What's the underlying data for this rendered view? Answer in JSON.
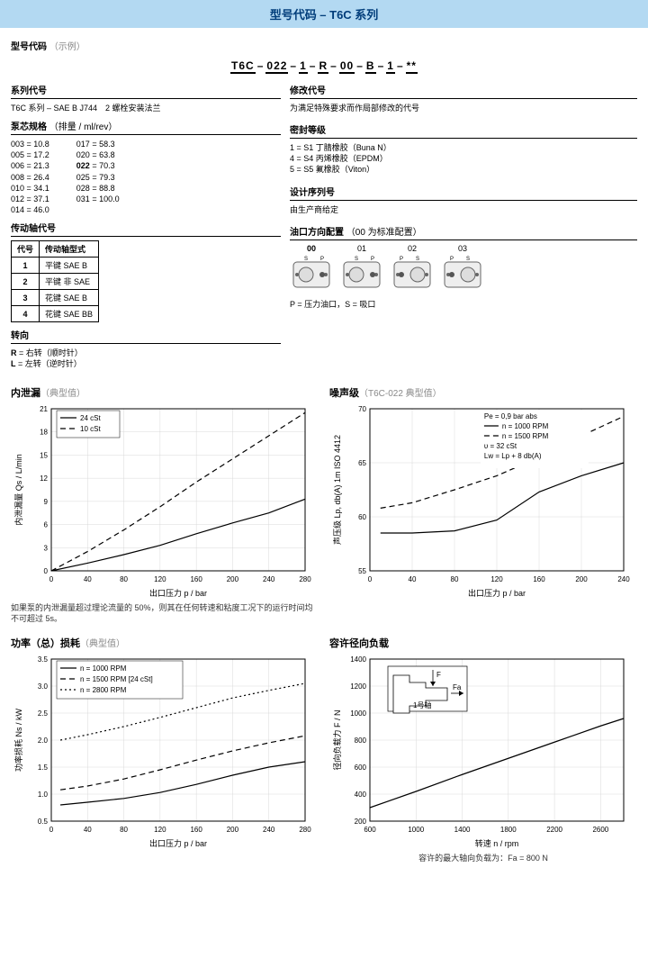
{
  "title": "型号代码 – T6C 系列",
  "model_label": "型号代码",
  "model_label_suffix": "（示例）",
  "model_segments": [
    "T6C",
    "022",
    "1",
    "R",
    "00",
    "B",
    "1",
    "**"
  ],
  "series": {
    "header": "系列代号",
    "line": "T6C 系列 – SAE B J744　2 螺栓安装法兰"
  },
  "displacement": {
    "header": "泵芯规格",
    "sub": "（排量 / ml/rev）",
    "left": [
      "003 = 10.8",
      "005 = 17.2",
      "006 = 21.3",
      "008 = 26.4",
      "010 = 34.1",
      "012 = 37.1",
      "014 = 46.0"
    ],
    "right": [
      "017 = 58.3",
      "020 = 63.8",
      "022 = 70.3",
      "025 = 79.3",
      "028 = 88.8",
      "031 = 100.0"
    ],
    "bold_idx": 2
  },
  "shaft": {
    "header": "传动轴代号",
    "cols": [
      "代号",
      "传动轴型式"
    ],
    "rows": [
      [
        "1",
        "平键 SAE B"
      ],
      [
        "2",
        "平键 非 SAE"
      ],
      [
        "3",
        "花键 SAE B"
      ],
      [
        "4",
        "花键 SAE BB"
      ]
    ]
  },
  "rotation": {
    "header": "转向",
    "lines": [
      "R = 右转（顺时针）",
      "L = 左转（逆时针）"
    ]
  },
  "revision": {
    "header": "修改代号",
    "line": "为满足特殊要求而作局部修改的代号"
  },
  "seal": {
    "header": "密封等级",
    "lines": [
      "1 = S1 丁腈橡胶（Buna N）",
      "4 = S4 丙烯橡胶（EPDM）",
      "5 = S5 氟橡胶（Viton）"
    ]
  },
  "design": {
    "header": "设计序列号",
    "line": "由生产商给定"
  },
  "port": {
    "header": "油口方向配置",
    "sub": "（00 为标准配置）",
    "options": [
      "00",
      "01",
      "02",
      "03"
    ],
    "p_label": "P",
    "s_label": "S",
    "note": "P = 压力油口，S = 吸口"
  },
  "chart1": {
    "title": "内泄漏",
    "sub": "（典型值）",
    "type": "line",
    "xlabel": "出口压力 p / bar",
    "ylabel": "内泄漏量 Qs / L/min",
    "xlim": [
      0,
      280
    ],
    "xtick_step": 40,
    "ylim": [
      0,
      21
    ],
    "ytick_step": 3,
    "grid_color": "#d9d9d9",
    "series": [
      {
        "name": "24 cSt",
        "dash": "none",
        "points": [
          [
            0,
            0
          ],
          [
            40,
            1.0
          ],
          [
            80,
            2.1
          ],
          [
            120,
            3.3
          ],
          [
            160,
            4.8
          ],
          [
            200,
            6.2
          ],
          [
            240,
            7.5
          ],
          [
            280,
            9.3
          ]
        ]
      },
      {
        "name": "10 cSt",
        "dash": "6,4",
        "points": [
          [
            0,
            0
          ],
          [
            40,
            2.5
          ],
          [
            80,
            5.3
          ],
          [
            120,
            8.3
          ],
          [
            160,
            11.5
          ],
          [
            200,
            14.5
          ],
          [
            240,
            17.5
          ],
          [
            280,
            20.5
          ]
        ]
      }
    ],
    "line_color": "#000",
    "note": "如果泵的内泄漏量超过理论流量的 50%，则其在任何转速和粘度工况下的运行时间均不可超过 5s。"
  },
  "chart2": {
    "title": "噪声级",
    "sub": "（T6C-022 典型值）",
    "type": "line",
    "xlabel": "出口压力 p / bar",
    "ylabel": "声压级 Lp, db(A) 1m ISO 4412",
    "xlim": [
      0,
      240
    ],
    "xtick_step": 40,
    "ylim": [
      55,
      70
    ],
    "ytick_step": 5,
    "grid_color": "#d9d9d9",
    "legend_lines": [
      "Pe = 0,9 bar abs",
      "n = 1000 RPM",
      "n = 1500 RPM",
      "υ = 32 cSt",
      "Lw = Lp + 8 db(A)"
    ],
    "legend_dash": {
      "1": "none",
      "2": "6,4"
    },
    "series": [
      {
        "name": "1000 RPM",
        "dash": "none",
        "points": [
          [
            10,
            58.5
          ],
          [
            40,
            58.5
          ],
          [
            80,
            58.7
          ],
          [
            120,
            59.7
          ],
          [
            160,
            62.3
          ],
          [
            200,
            63.8
          ],
          [
            240,
            65.0
          ]
        ]
      },
      {
        "name": "1500 RPM",
        "dash": "6,4",
        "points": [
          [
            10,
            60.8
          ],
          [
            40,
            61.3
          ],
          [
            80,
            62.5
          ],
          [
            120,
            63.8
          ],
          [
            160,
            65.5
          ],
          [
            200,
            67.5
          ],
          [
            240,
            69.3
          ]
        ]
      }
    ],
    "line_color": "#000"
  },
  "chart3": {
    "title": "功率（总）损耗",
    "sub": "（典型值）",
    "type": "line",
    "xlabel": "出口压力 p / bar",
    "ylabel": "功率损耗 Ns / kW",
    "xlim": [
      0,
      280
    ],
    "xtick_step": 40,
    "ylim": [
      0.5,
      3.5
    ],
    "ytick_step": 0.5,
    "grid_color": "#d9d9d9",
    "series": [
      {
        "name": "n = 1000 RPM",
        "dash": "none",
        "points": [
          [
            10,
            0.8
          ],
          [
            40,
            0.85
          ],
          [
            80,
            0.92
          ],
          [
            120,
            1.03
          ],
          [
            160,
            1.18
          ],
          [
            200,
            1.35
          ],
          [
            240,
            1.5
          ],
          [
            280,
            1.6
          ]
        ]
      },
      {
        "name": "n = 1500 RPM [24 cSt]",
        "dash": "6,4",
        "points": [
          [
            10,
            1.08
          ],
          [
            40,
            1.15
          ],
          [
            80,
            1.28
          ],
          [
            120,
            1.45
          ],
          [
            160,
            1.63
          ],
          [
            200,
            1.8
          ],
          [
            240,
            1.95
          ],
          [
            280,
            2.08
          ]
        ]
      },
      {
        "name": "n = 2800 RPM",
        "dash": "2,3",
        "points": [
          [
            10,
            2.0
          ],
          [
            40,
            2.1
          ],
          [
            80,
            2.25
          ],
          [
            120,
            2.42
          ],
          [
            160,
            2.6
          ],
          [
            200,
            2.78
          ],
          [
            240,
            2.92
          ],
          [
            280,
            3.05
          ]
        ]
      }
    ],
    "line_color": "#000"
  },
  "chart4": {
    "title": "容许径向负载",
    "sub": "",
    "type": "line",
    "xlabel": "转速 n / rpm",
    "ylabel": "径向负载力 F / N",
    "xlim": [
      600,
      2800
    ],
    "xtick_step": 400,
    "ylim": [
      200,
      1400
    ],
    "ytick_step": 200,
    "grid_color": "#d9d9d9",
    "series": [
      {
        "name": "",
        "dash": "none",
        "points": [
          [
            600,
            300
          ],
          [
            1000,
            420
          ],
          [
            1400,
            545
          ],
          [
            1800,
            665
          ],
          [
            2200,
            785
          ],
          [
            2600,
            905
          ],
          [
            2800,
            960
          ]
        ]
      }
    ],
    "line_color": "#000",
    "inset_label": "1号轴",
    "inset_f": "F",
    "inset_fa": "Fa",
    "footer": "容许的最大轴向负载为：Fa = 800 N"
  }
}
